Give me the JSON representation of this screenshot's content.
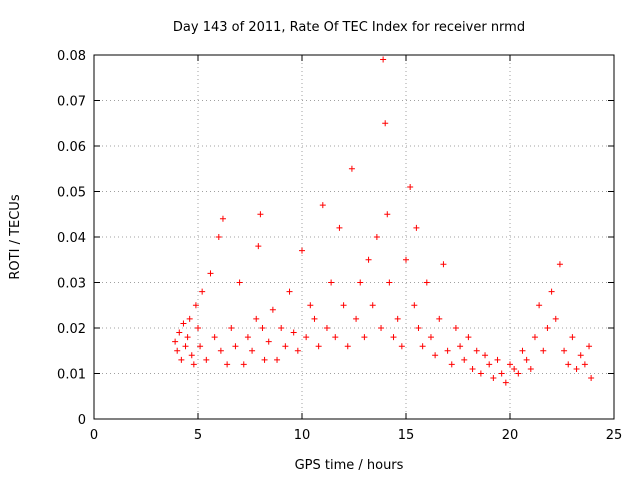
{
  "chart_data": {
    "type": "scatter",
    "title": "Day 143 of 2011, Rate Of TEC Index for receiver nrmd",
    "xlabel": "GPS time / hours",
    "ylabel": "ROTI / TECUs",
    "xlim": [
      0,
      25
    ],
    "ylim": [
      0,
      0.08
    ],
    "x_ticks": [
      "0",
      "5",
      "10",
      "15",
      "20",
      "25"
    ],
    "y_ticks": [
      "0",
      "0.01",
      "0.02",
      "0.03",
      "0.04",
      "0.05",
      "0.06",
      "0.07",
      "0.08"
    ],
    "grid": true,
    "marker": "+",
    "color": "#ff0000",
    "series": [
      {
        "x": [
          3.9,
          4.0,
          4.1,
          4.2,
          4.3,
          4.4,
          4.5,
          4.6,
          4.7,
          4.8,
          4.9,
          5.0,
          5.1,
          5.2,
          5.4,
          5.6,
          5.8,
          6.0,
          6.1,
          6.2,
          6.4,
          6.6,
          6.8,
          7.0,
          7.2,
          7.4,
          7.6,
          7.8,
          7.9,
          8.0,
          8.1,
          8.2,
          8.4,
          8.6,
          8.8,
          9.0,
          9.2,
          9.4,
          9.6,
          9.8,
          10.0,
          10.2,
          10.4,
          10.6,
          10.8,
          11.0,
          11.2,
          11.4,
          11.6,
          11.8,
          12.0,
          12.2,
          12.4,
          12.6,
          12.8,
          13.0,
          13.2,
          13.4,
          13.6,
          13.8,
          13.9,
          14.0,
          14.1,
          14.2,
          14.4,
          14.6,
          14.8,
          15.0,
          15.2,
          15.4,
          15.5,
          15.6,
          15.8,
          16.0,
          16.2,
          16.4,
          16.6,
          16.8,
          17.0,
          17.2,
          17.4,
          17.6,
          17.8,
          18.0,
          18.2,
          18.4,
          18.6,
          18.8,
          19.0,
          19.2,
          19.4,
          19.6,
          19.8,
          20.0,
          20.2,
          20.4,
          20.6,
          20.8,
          21.0,
          21.2,
          21.4,
          21.6,
          21.8,
          22.0,
          22.2,
          22.4,
          22.6,
          22.8,
          23.0,
          23.2,
          23.4,
          23.6,
          23.8,
          23.9
        ],
        "y": [
          0.017,
          0.015,
          0.019,
          0.013,
          0.021,
          0.016,
          0.018,
          0.022,
          0.014,
          0.012,
          0.025,
          0.02,
          0.016,
          0.028,
          0.013,
          0.032,
          0.018,
          0.04,
          0.015,
          0.044,
          0.012,
          0.02,
          0.016,
          0.03,
          0.012,
          0.018,
          0.015,
          0.022,
          0.038,
          0.045,
          0.02,
          0.013,
          0.017,
          0.024,
          0.013,
          0.02,
          0.016,
          0.028,
          0.019,
          0.015,
          0.037,
          0.018,
          0.025,
          0.022,
          0.016,
          0.047,
          0.02,
          0.03,
          0.018,
          0.042,
          0.025,
          0.016,
          0.055,
          0.022,
          0.03,
          0.018,
          0.035,
          0.025,
          0.04,
          0.02,
          0.079,
          0.065,
          0.045,
          0.03,
          0.018,
          0.022,
          0.016,
          0.035,
          0.051,
          0.025,
          0.042,
          0.02,
          0.016,
          0.03,
          0.018,
          0.014,
          0.022,
          0.034,
          0.015,
          0.012,
          0.02,
          0.016,
          0.013,
          0.018,
          0.011,
          0.015,
          0.01,
          0.014,
          0.012,
          0.009,
          0.013,
          0.01,
          0.008,
          0.012,
          0.011,
          0.01,
          0.015,
          0.013,
          0.011,
          0.018,
          0.025,
          0.015,
          0.02,
          0.028,
          0.022,
          0.034,
          0.015,
          0.012,
          0.018,
          0.011,
          0.014,
          0.012,
          0.016,
          0.009
        ]
      }
    ]
  }
}
